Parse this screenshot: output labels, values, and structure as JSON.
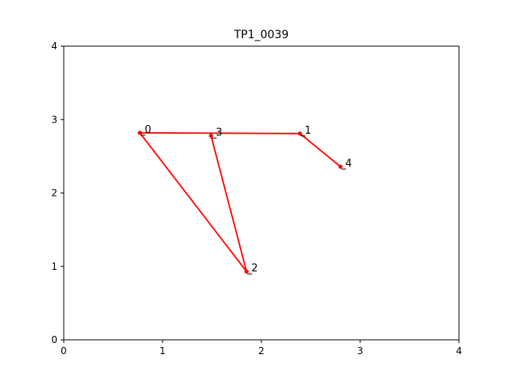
{
  "chart_data": {
    "type": "line",
    "title": "TP1_0039",
    "xlabel": "",
    "ylabel": "",
    "xlim": [
      0,
      4
    ],
    "ylim": [
      0,
      4
    ],
    "xticks": [
      0,
      1,
      2,
      3,
      4
    ],
    "yticks": [
      0,
      1,
      2,
      3,
      4
    ],
    "grid": false,
    "line_color": "#ff0000",
    "series": [
      {
        "points": [
          {
            "label": "0",
            "x": 0.77,
            "y": 2.82
          },
          {
            "label": "1",
            "x": 2.39,
            "y": 2.81
          },
          {
            "label": "2",
            "x": 1.85,
            "y": 0.93
          },
          {
            "label": "3",
            "x": 1.49,
            "y": 2.78
          },
          {
            "label": "4",
            "x": 2.8,
            "y": 2.36
          }
        ],
        "path": [
          "4",
          "1",
          "0",
          "2",
          "3"
        ]
      }
    ]
  }
}
